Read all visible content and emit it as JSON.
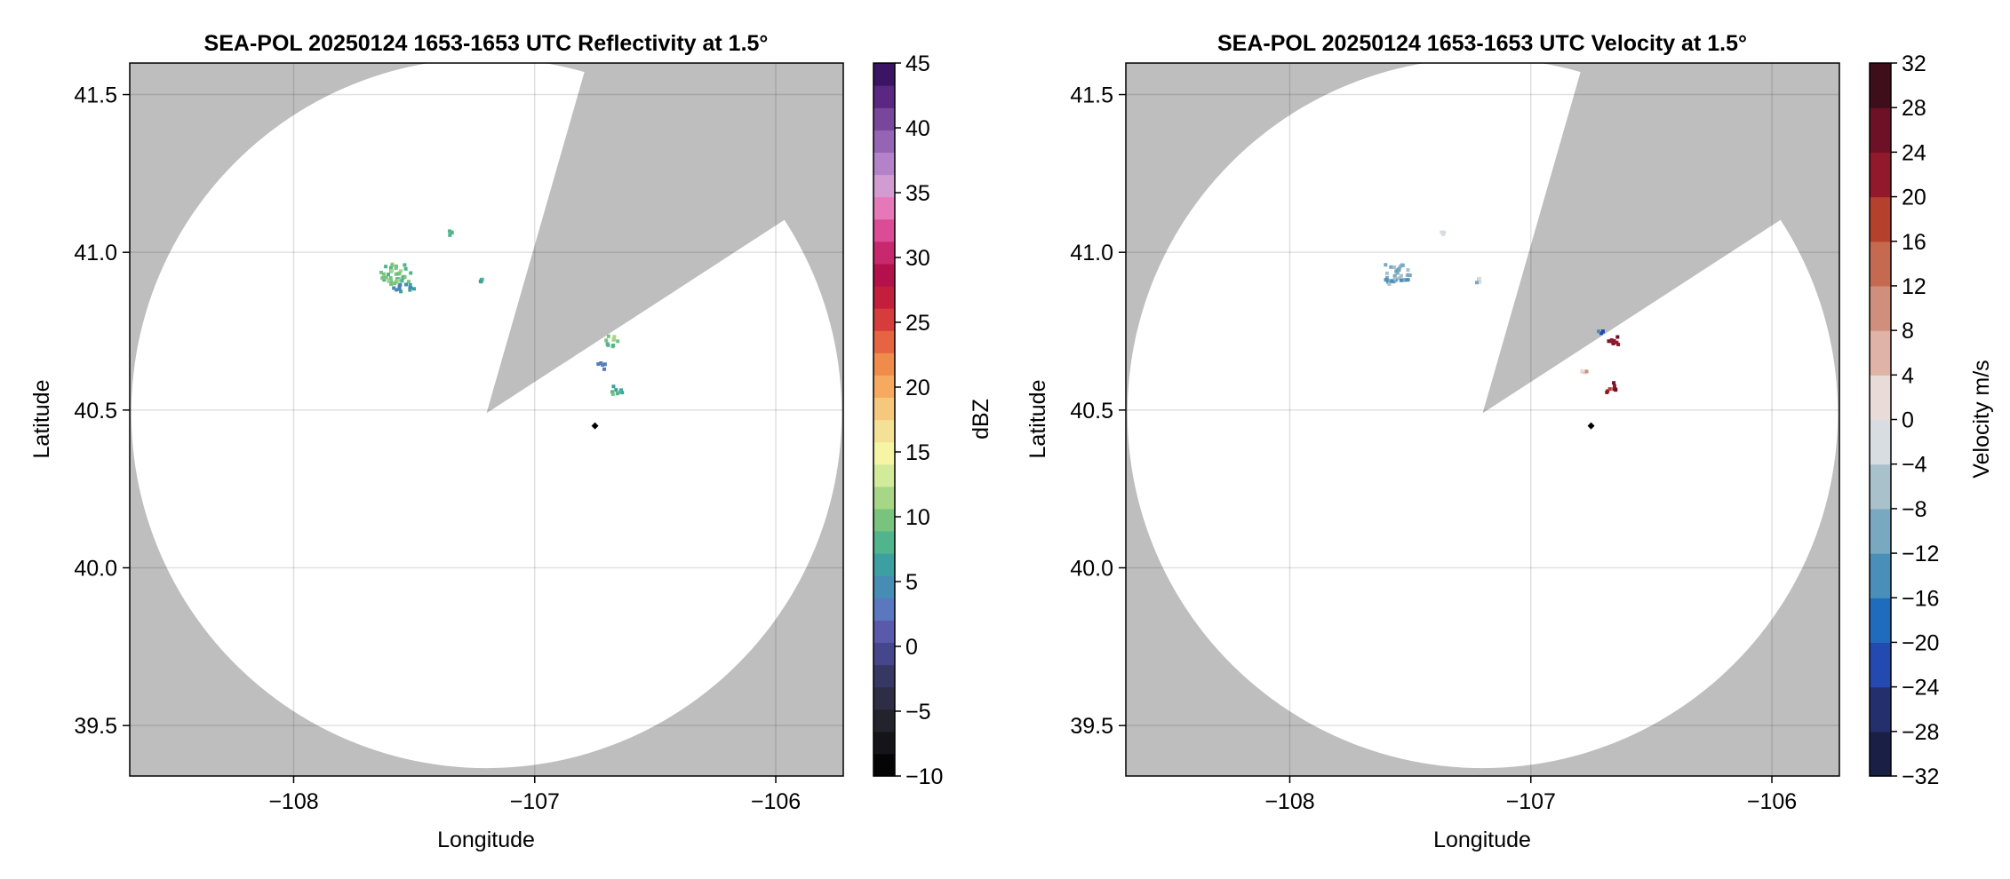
{
  "colors": {
    "background_mask": "#bebebe",
    "radar_coverage": "#ffffff",
    "radar_site_marker": "#000000"
  },
  "chart_data": [
    {
      "type": "heatmap",
      "title": "SEA-POL 20250124 1653-1653 UTC Reflectivity at 1.5°",
      "xlabel": "Longitude",
      "ylabel": "Latitude",
      "xlim": [
        -108.68,
        -105.72
      ],
      "ylim": [
        39.34,
        41.6
      ],
      "xticks": [
        -108,
        -107,
        -106
      ],
      "xtick_labels": [
        "−108",
        "−107",
        "−106"
      ],
      "yticks": [
        39.5,
        40.0,
        40.5,
        41.0,
        41.5
      ],
      "ytick_labels": [
        "39.5",
        "40.0",
        "40.5",
        "41.0",
        "41.5"
      ],
      "grid": true,
      "radar_site": {
        "lon": -106.75,
        "lat": 40.45
      },
      "coverage": {
        "center_lon": -107.2,
        "center_lat": 40.49,
        "range_lat_deg": 1.125,
        "blocked_sector_bearing_deg": [
          16,
          57
        ]
      },
      "echoes": [
        {
          "lon": -107.57,
          "lat": 40.93,
          "value": 18,
          "extent_lon": 0.14,
          "extent_lat": 0.07
        },
        {
          "lon": -107.54,
          "lat": 40.89,
          "value": 12,
          "extent_lon": 0.1,
          "extent_lat": 0.03
        },
        {
          "lon": -106.68,
          "lat": 40.72,
          "value": 18,
          "extent_lon": 0.06,
          "extent_lat": 0.04
        },
        {
          "lon": -106.66,
          "lat": 40.56,
          "value": 16,
          "extent_lon": 0.05,
          "extent_lat": 0.04
        },
        {
          "lon": -106.72,
          "lat": 40.64,
          "value": 10,
          "extent_lon": 0.04,
          "extent_lat": 0.03
        },
        {
          "lon": -107.35,
          "lat": 41.06,
          "value": 15,
          "extent_lon": 0.02,
          "extent_lat": 0.01
        },
        {
          "lon": -107.22,
          "lat": 40.91,
          "value": 16,
          "extent_lon": 0.01,
          "extent_lat": 0.01
        }
      ],
      "colorbar": {
        "label": "dBZ",
        "min": -10,
        "max": 45,
        "step": 2.5,
        "ticks": [
          -10,
          -5,
          0,
          5,
          10,
          15,
          20,
          25,
          30,
          35,
          40,
          45
        ],
        "tick_labels": [
          "−10",
          "−5",
          "0",
          "5",
          "10",
          "15",
          "20",
          "25",
          "30",
          "35",
          "40",
          "45"
        ],
        "colors": [
          "#050505",
          "#141419",
          "#23232d",
          "#2d2d46",
          "#373764",
          "#46468c",
          "#5a5aaa",
          "#5a78be",
          "#468cb4",
          "#3ca0a0",
          "#50b48c",
          "#78c37d",
          "#a5d787",
          "#d2eb9b",
          "#f5f5a5",
          "#f5e196",
          "#f5c87d",
          "#f5aa5f",
          "#f08c4b",
          "#e66441",
          "#d73c3c",
          "#c31e3c",
          "#b4104b",
          "#c8286e",
          "#dc4b96",
          "#e678b9",
          "#d29bd2",
          "#b482c8",
          "#9664b4",
          "#78469b",
          "#5a2882",
          "#3c1464"
        ]
      }
    },
    {
      "type": "heatmap",
      "title": "SEA-POL 20250124 1653-1653 UTC Velocity at 1.5°",
      "xlabel": "Longitude",
      "ylabel": "Latitude",
      "xlim": [
        -108.68,
        -105.72
      ],
      "ylim": [
        39.34,
        41.6
      ],
      "xticks": [
        -108,
        -107,
        -106
      ],
      "xtick_labels": [
        "−108",
        "−107",
        "−106"
      ],
      "yticks": [
        39.5,
        40.0,
        40.5,
        41.0,
        41.5
      ],
      "ytick_labels": [
        "39.5",
        "40.0",
        "40.5",
        "41.0",
        "41.5"
      ],
      "grid": true,
      "radar_site": {
        "lon": -106.75,
        "lat": 40.45
      },
      "coverage": {
        "center_lon": -107.2,
        "center_lat": 40.49,
        "range_lat_deg": 1.125,
        "blocked_sector_bearing_deg": [
          16,
          57
        ]
      },
      "echoes": [
        {
          "lon": -107.57,
          "lat": 40.93,
          "value": -10,
          "extent_lon": 0.14,
          "extent_lat": 0.07
        },
        {
          "lon": -106.66,
          "lat": 40.72,
          "value": 24,
          "extent_lon": 0.06,
          "extent_lat": 0.04
        },
        {
          "lon": -106.67,
          "lat": 40.57,
          "value": 24,
          "extent_lon": 0.05,
          "extent_lat": 0.04
        },
        {
          "lon": -106.71,
          "lat": 40.75,
          "value": -18,
          "extent_lon": 0.01,
          "extent_lat": 0.01
        },
        {
          "lon": -106.78,
          "lat": 40.62,
          "value": 6,
          "extent_lon": 0.03,
          "extent_lat": 0.02
        },
        {
          "lon": -107.37,
          "lat": 41.06,
          "value": -2,
          "extent_lon": 0.02,
          "extent_lat": 0.01
        },
        {
          "lon": -107.22,
          "lat": 40.91,
          "value": -6,
          "extent_lon": 0.01,
          "extent_lat": 0.01
        }
      ],
      "colorbar": {
        "label": "Velocity m/s",
        "min": -32,
        "max": 32,
        "step": 4,
        "ticks": [
          -32,
          -28,
          -24,
          -20,
          -16,
          -12,
          -8,
          -4,
          0,
          4,
          8,
          12,
          16,
          20,
          24,
          28,
          32
        ],
        "tick_labels": [
          "−32",
          "−28",
          "−24",
          "−20",
          "−16",
          "−12",
          "−8",
          "−4",
          "0",
          "4",
          "8",
          "12",
          "16",
          "20",
          "24",
          "28",
          "32"
        ],
        "colors": [
          "#1a1f45",
          "#24306e",
          "#2449b0",
          "#1f6cbf",
          "#4a8fba",
          "#79a9c0",
          "#a9c1ca",
          "#d7dde1",
          "#e9dcd8",
          "#dfb3a6",
          "#d08e7c",
          "#c56a50",
          "#b5402c",
          "#92182b",
          "#6e1127",
          "#3e0f1b"
        ]
      }
    }
  ]
}
